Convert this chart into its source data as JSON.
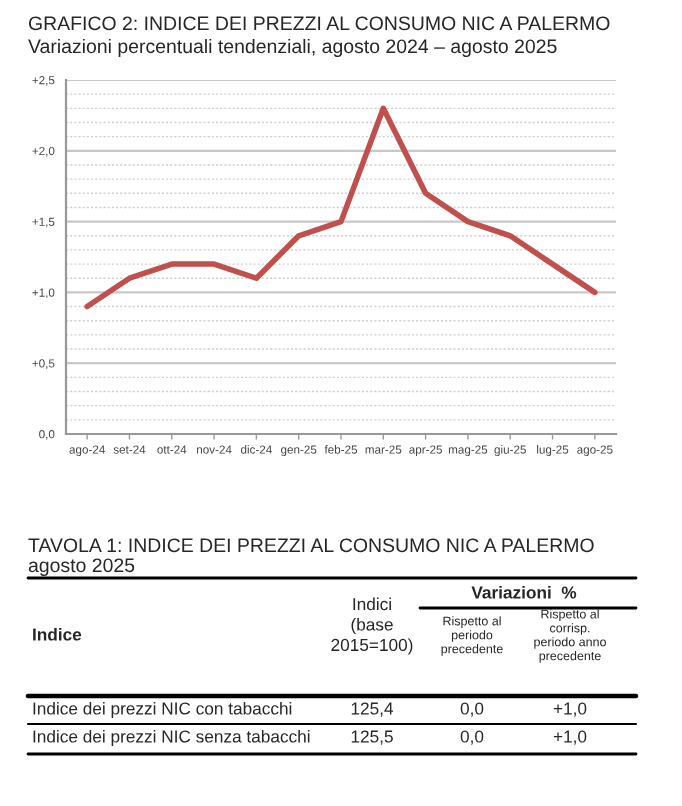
{
  "chart_data": [
    {
      "type": "line",
      "title": "GRAFICO 2: INDICE DEI PREZZI AL CONSUMO NIC A PALERMO",
      "subtitle": "Variazioni percentuali tendenziali, agosto 2024 – agosto 2025",
      "categories": [
        "ago-24",
        "set-24",
        "ott-24",
        "nov-24",
        "dic-24",
        "gen-25",
        "feb-25",
        "mar-25",
        "apr-25",
        "mag-25",
        "giu-25",
        "lug-25",
        "ago-25"
      ],
      "series": [
        {
          "color": "#c0504d",
          "values": [
            0.9,
            1.1,
            1.2,
            1.2,
            1.1,
            1.4,
            1.5,
            2.3,
            1.7,
            1.5,
            1.4,
            1.2,
            1.0
          ]
        }
      ],
      "ylim": [
        0,
        2.5
      ],
      "yticks": [
        {
          "value": 0,
          "label": "0,0"
        },
        {
          "value": 0.5,
          "label": "+0,5"
        },
        {
          "value": 1.0,
          "label": "+1,0"
        },
        {
          "value": 1.5,
          "label": "+1,5"
        },
        {
          "value": 2.0,
          "label": "+2,0"
        },
        {
          "value": 2.5,
          "label": "+2,5"
        }
      ],
      "grid": "y",
      "marker": "none",
      "line_style": "solid"
    },
    {
      "type": "other",
      "title": "TAVOLA 1: INDICE DEI PREZZI AL CONSUMO NIC A PALERMO",
      "subtitle": "agosto 2025",
      "annotations": [
        "Indice",
        "Indici\n(base\n2015=100)",
        "Variazioni  %",
        "Rispetto al\nperiodo\nprecedente",
        "Rispetto al\ncorrisp.\nperiodo anno\nprecedente",
        "Indice dei prezzi NIC con tabacchi",
        "125,4",
        "0,0",
        "+1,0",
        "Indice dei prezzi NIC senza tabacchi",
        "125,5",
        "0,0",
        "+1,0"
      ]
    }
  ]
}
